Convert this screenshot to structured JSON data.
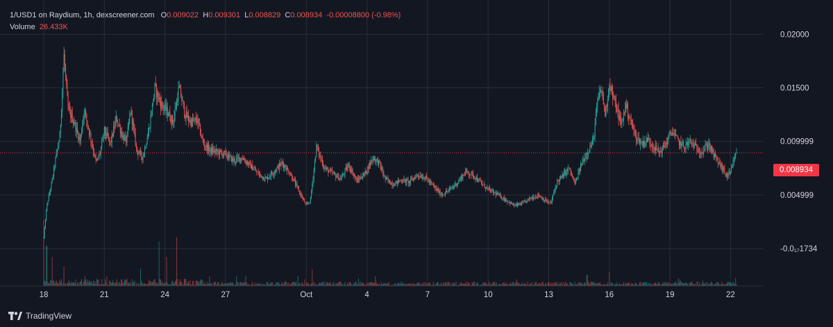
{
  "legend": {
    "symbol": "1/USD1 on Raydium, 1h, dexscreener.com",
    "o_label": "O",
    "o_value": "0.009022",
    "h_label": "H",
    "h_value": "0.009301",
    "l_label": "L",
    "l_value": "0.008829",
    "c_label": "C",
    "c_value": "0.008934",
    "change": "-0.00008800 (-0.98%)",
    "volume_label": "Volume",
    "volume_value": "26.433K"
  },
  "current_price_label": "0.008934",
  "brand": "TradingView",
  "colors": {
    "background": "#131722",
    "grid": "#2a2e39",
    "up": "#26a69a",
    "down": "#ef5350",
    "price_line": "#f23645",
    "text": "#d1d4dc"
  },
  "chart_data": {
    "type": "candlestick",
    "x_axis": {
      "ticks": [
        {
          "label": "18",
          "day": 0
        },
        {
          "label": "21",
          "day": 3
        },
        {
          "label": "24",
          "day": 6
        },
        {
          "label": "27",
          "day": 9
        },
        {
          "label": "Oct",
          "day": 13
        },
        {
          "label": "4",
          "day": 16
        },
        {
          "label": "7",
          "day": 19
        },
        {
          "label": "10",
          "day": 22
        },
        {
          "label": "13",
          "day": 25
        },
        {
          "label": "16",
          "day": 28
        },
        {
          "label": "19",
          "day": 31
        },
        {
          "label": "22",
          "day": 34
        }
      ]
    },
    "y_axis": {
      "ticks": [
        {
          "label": "0.02000",
          "value": 0.02
        },
        {
          "label": "0.01500",
          "value": 0.015
        },
        {
          "label": "0.009999",
          "value": 0.009999
        },
        {
          "label": "0.004999",
          "value": 0.004999
        },
        {
          "label": "-0.0₁₇1734",
          "value": 0.0
        }
      ],
      "range": [
        -0.0035,
        0.0232
      ]
    },
    "current_price": 0.008934,
    "price_path": [
      [
        0.0,
        0.001
      ],
      [
        0.15,
        0.004
      ],
      [
        0.4,
        0.0062
      ],
      [
        0.6,
        0.0085
      ],
      [
        0.8,
        0.0105
      ],
      [
        1.0,
        0.018
      ],
      [
        1.2,
        0.013
      ],
      [
        1.5,
        0.0118
      ],
      [
        1.8,
        0.01
      ],
      [
        2.0,
        0.013
      ],
      [
        2.3,
        0.0105
      ],
      [
        2.6,
        0.008
      ],
      [
        2.8,
        0.009
      ],
      [
        3.0,
        0.011
      ],
      [
        3.3,
        0.0098
      ],
      [
        3.6,
        0.0122
      ],
      [
        3.9,
        0.0105
      ],
      [
        4.1,
        0.01
      ],
      [
        4.3,
        0.013
      ],
      [
        4.6,
        0.0092
      ],
      [
        4.9,
        0.0085
      ],
      [
        5.2,
        0.011
      ],
      [
        5.5,
        0.015
      ],
      [
        5.8,
        0.0135
      ],
      [
        6.1,
        0.0128
      ],
      [
        6.4,
        0.0118
      ],
      [
        6.7,
        0.015
      ],
      [
        7.0,
        0.0125
      ],
      [
        7.3,
        0.0118
      ],
      [
        7.6,
        0.012
      ],
      [
        7.9,
        0.0098
      ],
      [
        8.2,
        0.0092
      ],
      [
        8.6,
        0.009
      ],
      [
        9.0,
        0.0088
      ],
      [
        9.4,
        0.0082
      ],
      [
        9.8,
        0.0085
      ],
      [
        10.2,
        0.0078
      ],
      [
        10.6,
        0.007
      ],
      [
        11.0,
        0.0065
      ],
      [
        11.4,
        0.0072
      ],
      [
        11.8,
        0.008
      ],
      [
        12.2,
        0.007
      ],
      [
        12.6,
        0.0055
      ],
      [
        13.0,
        0.004
      ],
      [
        13.2,
        0.0045
      ],
      [
        13.5,
        0.0095
      ],
      [
        13.9,
        0.0075
      ],
      [
        14.3,
        0.007
      ],
      [
        14.7,
        0.0065
      ],
      [
        15.1,
        0.0078
      ],
      [
        15.5,
        0.0063
      ],
      [
        15.9,
        0.007
      ],
      [
        16.3,
        0.0085
      ],
      [
        16.6,
        0.008
      ],
      [
        16.9,
        0.0065
      ],
      [
        17.3,
        0.006
      ],
      [
        17.7,
        0.0064
      ],
      [
        18.1,
        0.0062
      ],
      [
        18.5,
        0.0069
      ],
      [
        18.9,
        0.0066
      ],
      [
        19.3,
        0.0058
      ],
      [
        19.7,
        0.005
      ],
      [
        20.1,
        0.0055
      ],
      [
        20.5,
        0.0062
      ],
      [
        20.9,
        0.0072
      ],
      [
        21.3,
        0.0068
      ],
      [
        21.7,
        0.006
      ],
      [
        22.1,
        0.0054
      ],
      [
        22.5,
        0.005
      ],
      [
        22.9,
        0.0045
      ],
      [
        23.3,
        0.004
      ],
      [
        23.7,
        0.0042
      ],
      [
        24.1,
        0.0047
      ],
      [
        24.5,
        0.005
      ],
      [
        24.8,
        0.0045
      ],
      [
        25.1,
        0.0042
      ],
      [
        25.4,
        0.0062
      ],
      [
        25.7,
        0.0068
      ],
      [
        26.0,
        0.0075
      ],
      [
        26.3,
        0.006
      ],
      [
        26.6,
        0.0078
      ],
      [
        26.9,
        0.009
      ],
      [
        27.2,
        0.01
      ],
      [
        27.4,
        0.0135
      ],
      [
        27.6,
        0.015
      ],
      [
        27.8,
        0.0125
      ],
      [
        28.0,
        0.0155
      ],
      [
        28.2,
        0.014
      ],
      [
        28.4,
        0.0128
      ],
      [
        28.6,
        0.0115
      ],
      [
        28.8,
        0.0135
      ],
      [
        29.0,
        0.0122
      ],
      [
        29.3,
        0.0105
      ],
      [
        29.6,
        0.0098
      ],
      [
        29.9,
        0.0102
      ],
      [
        30.2,
        0.0095
      ],
      [
        30.5,
        0.009
      ],
      [
        30.8,
        0.0098
      ],
      [
        31.1,
        0.011
      ],
      [
        31.4,
        0.01
      ],
      [
        31.7,
        0.0095
      ],
      [
        32.0,
        0.01
      ],
      [
        32.3,
        0.0094
      ],
      [
        32.6,
        0.009
      ],
      [
        32.9,
        0.0098
      ],
      [
        33.2,
        0.0086
      ],
      [
        33.5,
        0.0078
      ],
      [
        33.8,
        0.0068
      ],
      [
        34.0,
        0.007
      ],
      [
        34.2,
        0.0085
      ],
      [
        34.3,
        0.0089
      ]
    ],
    "volume_spikes": [
      [
        0.0,
        95
      ],
      [
        0.15,
        58
      ],
      [
        0.4,
        42
      ],
      [
        1.0,
        28
      ],
      [
        4.8,
        25
      ],
      [
        5.7,
        64
      ],
      [
        6.1,
        42
      ],
      [
        6.6,
        70
      ],
      [
        13.3,
        24
      ],
      [
        16.4,
        14
      ],
      [
        26.9,
        16
      ],
      [
        28.0,
        20
      ]
    ],
    "volume_base_range": [
      1,
      9
    ],
    "range_days": [
      0,
      34.3
    ]
  }
}
